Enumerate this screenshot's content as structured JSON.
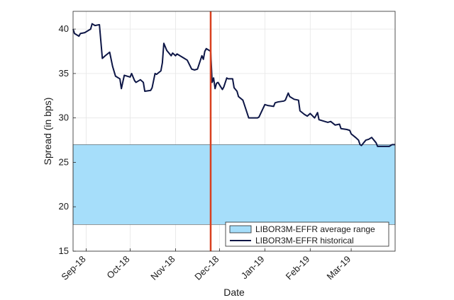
{
  "chart_data": {
    "type": "line",
    "title": "",
    "xlabel": "Date",
    "ylabel": "Spread (in bps)",
    "ylim": [
      15,
      42
    ],
    "yticks": [
      15,
      20,
      25,
      30,
      35,
      40
    ],
    "xlim": [
      "2018-08-23",
      "2019-03-31"
    ],
    "xticks": [
      {
        "label": "Sep-18",
        "date": "2018-09-01"
      },
      {
        "label": "Oct-18",
        "date": "2018-10-01"
      },
      {
        "label": "Nov-18",
        "date": "2018-11-01"
      },
      {
        "label": "Dec-18",
        "date": "2018-12-01"
      },
      {
        "label": "Jan-19",
        "date": "2019-01-01"
      },
      {
        "label": "Feb-19",
        "date": "2019-02-01"
      },
      {
        "label": "Mar-19",
        "date": "2019-03-01"
      }
    ],
    "grid": true,
    "legend_position": "bottom-right",
    "band": {
      "name": "LIBOR3M-EFFR average range",
      "low": 18,
      "high": 27,
      "color": "#a6defa"
    },
    "vertical_line": {
      "date": "2018-11-25",
      "color": "#d9401f"
    },
    "series": [
      {
        "name": "LIBOR3M-EFFR historical",
        "color": "#0d1646",
        "points": [
          [
            "2018-08-23",
            40.0
          ],
          [
            "2018-08-24",
            39.5
          ],
          [
            "2018-08-27",
            39.2
          ],
          [
            "2018-08-28",
            39.5
          ],
          [
            "2018-08-31",
            39.6
          ],
          [
            "2018-09-04",
            40.0
          ],
          [
            "2018-09-05",
            40.6
          ],
          [
            "2018-09-07",
            40.4
          ],
          [
            "2018-09-10",
            40.5
          ],
          [
            "2018-09-12",
            36.7
          ],
          [
            "2018-09-14",
            37.0
          ],
          [
            "2018-09-17",
            37.4
          ],
          [
            "2018-09-19",
            35.8
          ],
          [
            "2018-09-21",
            34.7
          ],
          [
            "2018-09-24",
            34.4
          ],
          [
            "2018-09-25",
            33.3
          ],
          [
            "2018-09-27",
            34.8
          ],
          [
            "2018-10-01",
            34.6
          ],
          [
            "2018-10-02",
            35.0
          ],
          [
            "2018-10-04",
            34.2
          ],
          [
            "2018-10-05",
            34.0
          ],
          [
            "2018-10-08",
            34.3
          ],
          [
            "2018-10-10",
            34.0
          ],
          [
            "2018-10-11",
            33.0
          ],
          [
            "2018-10-15",
            33.1
          ],
          [
            "2018-10-16",
            33.4
          ],
          [
            "2018-10-18",
            35.0
          ],
          [
            "2018-10-19",
            34.9
          ],
          [
            "2018-10-22",
            35.3
          ],
          [
            "2018-10-23",
            36.2
          ],
          [
            "2018-10-24",
            38.4
          ],
          [
            "2018-10-26",
            37.6
          ],
          [
            "2018-10-29",
            37.0
          ],
          [
            "2018-10-30",
            37.3
          ],
          [
            "2018-11-01",
            37.0
          ],
          [
            "2018-11-02",
            37.2
          ],
          [
            "2018-11-05",
            36.9
          ],
          [
            "2018-11-07",
            36.7
          ],
          [
            "2018-11-09",
            36.5
          ],
          [
            "2018-11-12",
            35.5
          ],
          [
            "2018-11-14",
            35.4
          ],
          [
            "2018-11-16",
            35.5
          ],
          [
            "2018-11-19",
            37.0
          ],
          [
            "2018-11-20",
            36.6
          ],
          [
            "2018-11-21",
            37.5
          ],
          [
            "2018-11-22",
            37.8
          ],
          [
            "2018-11-25",
            37.5
          ],
          [
            "2018-11-26",
            34.0
          ],
          [
            "2018-11-27",
            34.5
          ],
          [
            "2018-11-28",
            33.3
          ],
          [
            "2018-11-29",
            33.9
          ],
          [
            "2018-11-30",
            34.0
          ],
          [
            "2018-12-03",
            33.2
          ],
          [
            "2018-12-04",
            33.5
          ],
          [
            "2018-12-06",
            34.5
          ],
          [
            "2018-12-07",
            34.4
          ],
          [
            "2018-12-10",
            34.4
          ],
          [
            "2018-12-11",
            33.4
          ],
          [
            "2018-12-13",
            33.0
          ],
          [
            "2018-12-14",
            32.4
          ],
          [
            "2018-12-17",
            32.0
          ],
          [
            "2018-12-19",
            31.0
          ],
          [
            "2018-12-21",
            30.0
          ],
          [
            "2018-12-24",
            30.0
          ],
          [
            "2018-12-27",
            30.0
          ],
          [
            "2018-12-28",
            30.1
          ],
          [
            "2019-01-01",
            31.5
          ],
          [
            "2019-01-03",
            31.4
          ],
          [
            "2019-01-07",
            31.3
          ],
          [
            "2019-01-08",
            31.7
          ],
          [
            "2019-01-10",
            31.8
          ],
          [
            "2019-01-14",
            31.9
          ],
          [
            "2019-01-15",
            32.0
          ],
          [
            "2019-01-17",
            32.8
          ],
          [
            "2019-01-18",
            32.4
          ],
          [
            "2019-01-21",
            32.1
          ],
          [
            "2019-01-24",
            32.0
          ],
          [
            "2019-01-25",
            30.8
          ],
          [
            "2019-01-28",
            30.4
          ],
          [
            "2019-01-30",
            30.2
          ],
          [
            "2019-02-01",
            30.5
          ],
          [
            "2019-02-04",
            30.0
          ],
          [
            "2019-02-06",
            30.6
          ],
          [
            "2019-02-07",
            29.8
          ],
          [
            "2019-02-11",
            29.6
          ],
          [
            "2019-02-13",
            29.5
          ],
          [
            "2019-02-15",
            29.6
          ],
          [
            "2019-02-18",
            29.2
          ],
          [
            "2019-02-21",
            29.3
          ],
          [
            "2019-02-22",
            28.8
          ],
          [
            "2019-02-26",
            28.7
          ],
          [
            "2019-02-28",
            28.6
          ],
          [
            "2019-03-01",
            28.2
          ],
          [
            "2019-03-04",
            27.8
          ],
          [
            "2019-03-06",
            27.5
          ],
          [
            "2019-03-07",
            27.0
          ],
          [
            "2019-03-08",
            26.9
          ],
          [
            "2019-03-11",
            27.5
          ],
          [
            "2019-03-13",
            27.6
          ],
          [
            "2019-03-15",
            27.8
          ],
          [
            "2019-03-18",
            27.2
          ],
          [
            "2019-03-19",
            26.8
          ],
          [
            "2019-03-21",
            26.8
          ],
          [
            "2019-03-25",
            26.8
          ],
          [
            "2019-03-27",
            26.8
          ],
          [
            "2019-03-29",
            27.0
          ],
          [
            "2019-03-31",
            27.0
          ]
        ]
      }
    ]
  }
}
